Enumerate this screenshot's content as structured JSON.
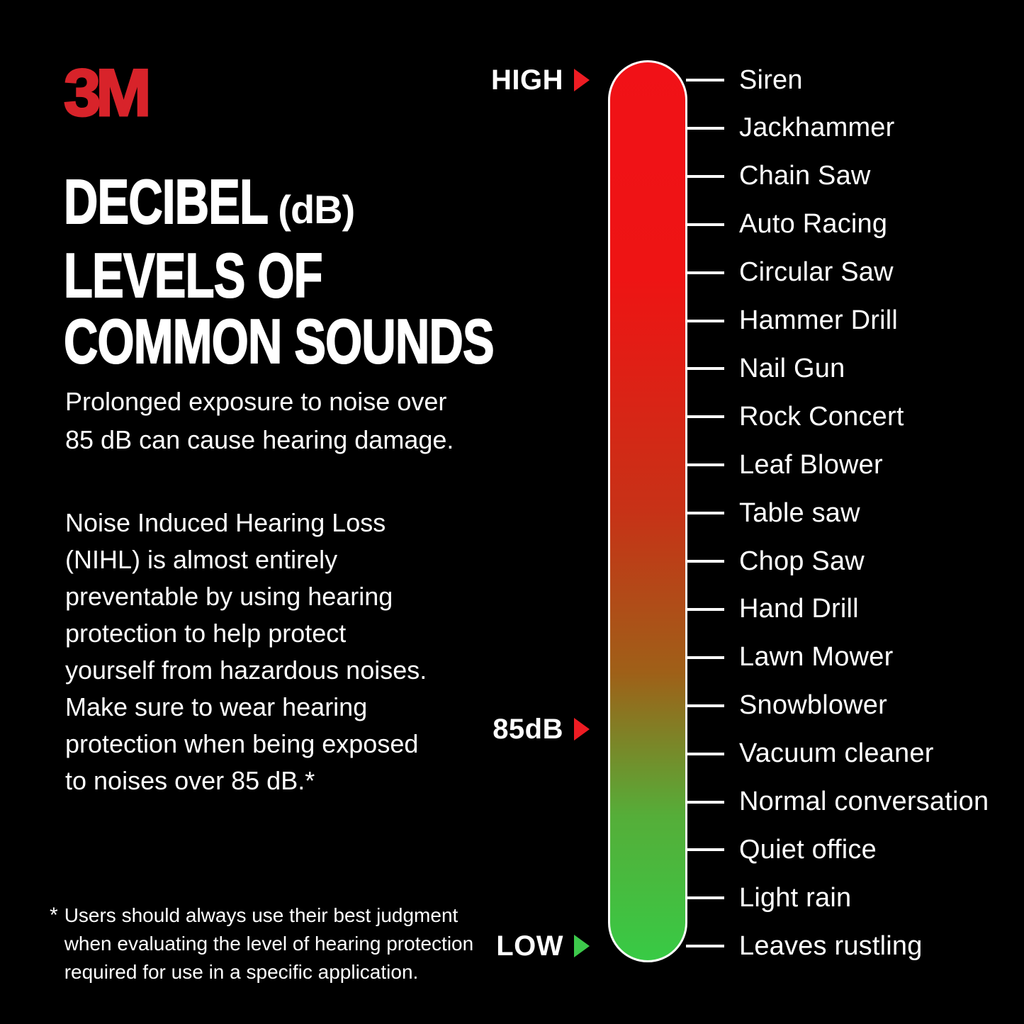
{
  "brand": {
    "logo": "3M",
    "color": "#d8232a"
  },
  "heading": {
    "line1_main": "DECIBEL",
    "line1_suffix": "(dB)",
    "line2": "LEVELS OF",
    "line3": "COMMON SOUNDS"
  },
  "intro_lines": [
    "Prolonged exposure to noise over",
    "85 dB can cause hearing damage."
  ],
  "body_lines": [
    "Noise Induced Hearing Loss",
    "(NIHL) is almost entirely",
    "preventable by using hearing",
    "protection to help protect",
    "yourself from hazardous noises.",
    "Make sure to wear hearing",
    "protection when being exposed",
    "to noises over 85 dB.*"
  ],
  "footnote": {
    "marker": "*",
    "lines": [
      "Users should always use their best judgment",
      "when evaluating the level of hearing protection",
      "required for use in a specific application."
    ]
  },
  "scale": {
    "bar_gradient": [
      "#f11117",
      "#ee1414",
      "#c73217",
      "#9f6018",
      "#55ae39",
      "#38ca45"
    ],
    "markers": [
      {
        "id": "high",
        "label": "HIGH",
        "arrow_color": "#ee1c23"
      },
      {
        "id": "85db",
        "label": "85dB",
        "arrow_color": "#ee1c23"
      },
      {
        "id": "low",
        "label": "LOW",
        "arrow_color": "#3dc94b"
      }
    ],
    "items": [
      "Siren",
      "Jackhammer",
      "Chain Saw",
      "Auto Racing",
      "Circular Saw",
      "Hammer Drill",
      "Nail Gun",
      "Rock Concert",
      "Leaf Blower",
      "Table saw",
      "Chop Saw",
      "Hand Drill",
      "Lawn Mower",
      "Snowblower",
      "Vacuum cleaner",
      "Normal conversation",
      "Quiet office",
      "Light rain",
      "Leaves rustling"
    ]
  }
}
